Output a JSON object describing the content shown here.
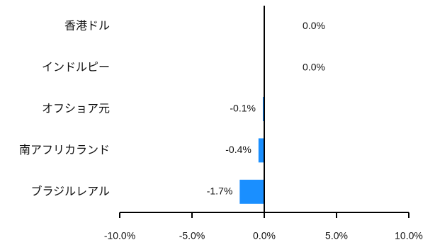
{
  "chart_data": {
    "type": "bar",
    "orientation": "horizontal",
    "categories": [
      "香港ドル",
      "インドルピー",
      "オフショア元",
      "南アフリカランド",
      "ブラジルレアル"
    ],
    "values": [
      0.0,
      0.0,
      -0.1,
      -0.4,
      -1.7
    ],
    "data_labels": [
      "0.0%",
      "0.0%",
      "-0.1%",
      "-0.4%",
      "-1.7%"
    ],
    "xlim": [
      -10,
      10
    ],
    "x_ticks": [
      -10,
      -5,
      0,
      5,
      10
    ],
    "x_tick_labels": [
      "-10.0%",
      "-5.0%",
      "0.0%",
      "5.0%",
      "10.0%"
    ],
    "bar_color": "#1a8fff",
    "grid": false,
    "legend": "none"
  }
}
